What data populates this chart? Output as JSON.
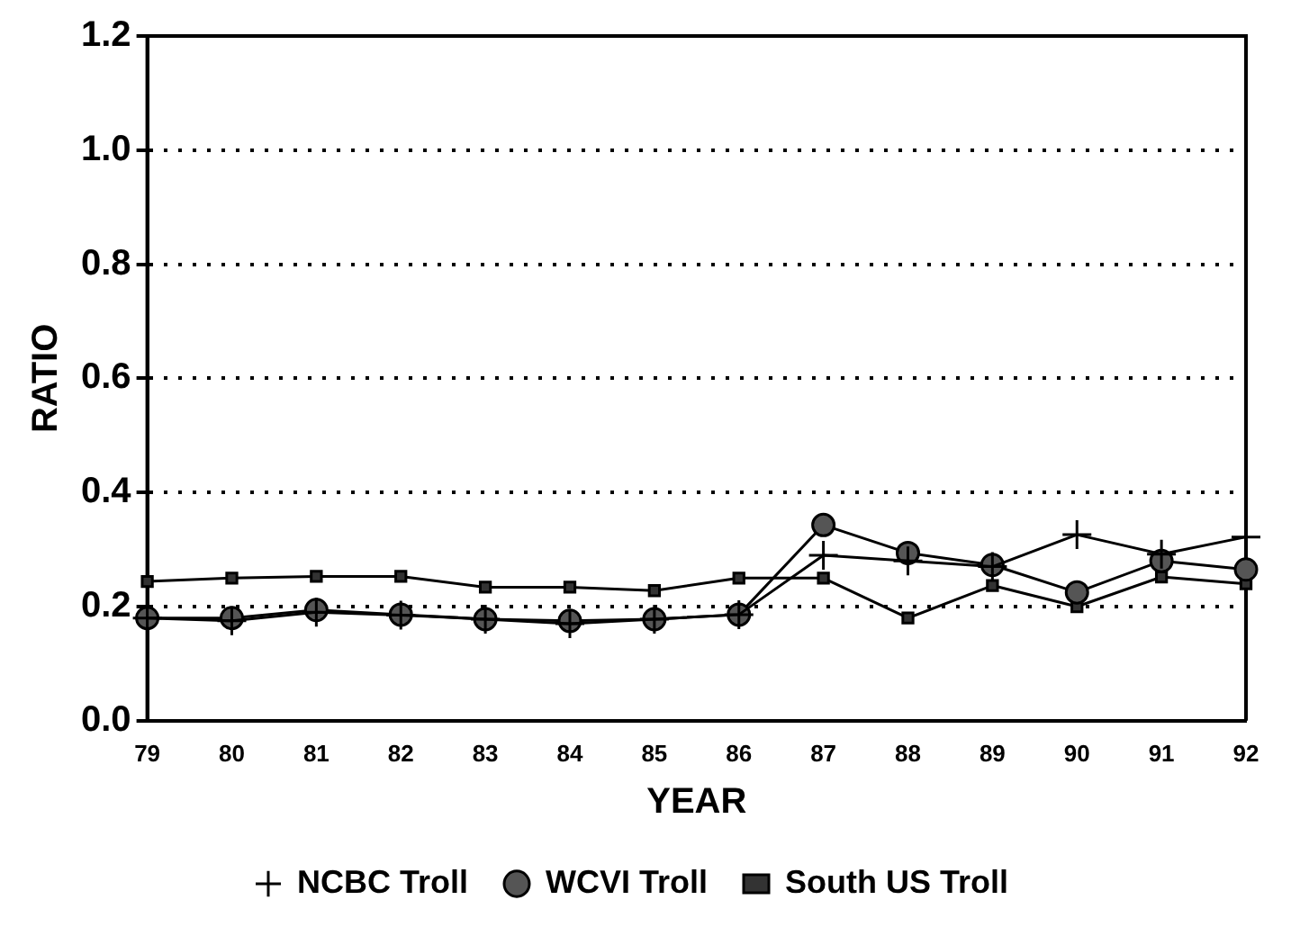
{
  "chart_data": {
    "type": "line",
    "xlabel": "YEAR",
    "ylabel": "RATIO",
    "categories": [
      "79",
      "80",
      "81",
      "82",
      "83",
      "84",
      "85",
      "86",
      "87",
      "88",
      "89",
      "90",
      "91",
      "92"
    ],
    "series": [
      {
        "name": "NCBC Troll",
        "color": "#000000",
        "marker": "cross",
        "values": [
          0.18,
          0.175,
          0.19,
          0.185,
          0.178,
          0.17,
          0.178,
          0.186,
          0.29,
          0.28,
          0.27,
          0.326,
          0.292,
          0.322
        ]
      },
      {
        "name": "WCVI Troll",
        "color": "#000000",
        "marker": "circle",
        "values": [
          0.18,
          0.18,
          0.194,
          0.186,
          0.178,
          0.175,
          0.178,
          0.186,
          0.343,
          0.294,
          0.273,
          0.225,
          0.28,
          0.265
        ]
      },
      {
        "name": "South US Troll",
        "color": "#000000",
        "marker": "square",
        "values": [
          0.244,
          0.25,
          0.253,
          0.253,
          0.234,
          0.234,
          0.228,
          0.25,
          0.25,
          0.18,
          0.237,
          0.2,
          0.252,
          0.24
        ]
      }
    ],
    "ylim": [
      0,
      1.2
    ],
    "yticks": [
      {
        "value": 0,
        "label": "0.0"
      },
      0.2,
      0.4,
      0.6,
      0.8,
      {
        "value": 1,
        "label": "1.0"
      },
      1.2
    ],
    "grid": "y",
    "line_style": "solid",
    "legend": "bottom"
  }
}
